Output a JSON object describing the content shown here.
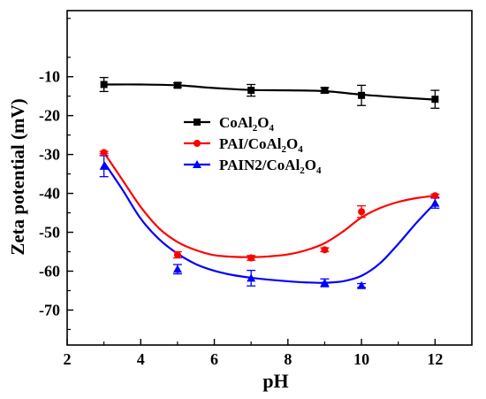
{
  "chart_data": {
    "type": "scatter",
    "title": "",
    "xlabel": "pH",
    "ylabel": "Zeta potential (mV)",
    "xlim": [
      2,
      13
    ],
    "ylim": [
      -79,
      7
    ],
    "x_ticks": [
      2,
      4,
      6,
      8,
      10,
      12
    ],
    "y_ticks": [
      -70,
      -60,
      -50,
      -40,
      -30,
      -20,
      -10
    ],
    "x_tick_labels": [
      "2",
      "4",
      "6",
      "8",
      "10",
      "12"
    ],
    "y_tick_labels": [
      "-70",
      "-60",
      "-50",
      "-40",
      "-30",
      "-20",
      "-10"
    ],
    "grid": false,
    "legend_position": "center-left",
    "series": [
      {
        "name_base": "CoAl",
        "name_sub1": "2",
        "name_mid": "O",
        "name_sub2": "4",
        "prefix": "",
        "color": "#000000",
        "marker": "square",
        "points": [
          {
            "x": 3,
            "y": -12.0,
            "err": 1.8
          },
          {
            "x": 5,
            "y": -12.2,
            "err": 0.6
          },
          {
            "x": 7,
            "y": -13.5,
            "err": 1.5
          },
          {
            "x": 9,
            "y": -13.5,
            "err": 0.7
          },
          {
            "x": 10,
            "y": -14.8,
            "err": 2.6
          },
          {
            "x": 12,
            "y": -15.8,
            "err": 2.3
          }
        ],
        "curve": [
          {
            "x": 3,
            "y": -12.0
          },
          {
            "x": 4,
            "y": -12.0
          },
          {
            "x": 5,
            "y": -12.2
          },
          {
            "x": 6,
            "y": -12.9
          },
          {
            "x": 7,
            "y": -13.4
          },
          {
            "x": 8,
            "y": -13.5
          },
          {
            "x": 9,
            "y": -13.7
          },
          {
            "x": 10,
            "y": -14.6
          },
          {
            "x": 11,
            "y": -15.3
          },
          {
            "x": 12,
            "y": -15.9
          }
        ]
      },
      {
        "name_base": "PAI/CoAl",
        "name_sub1": "2",
        "name_mid": "O",
        "name_sub2": "4",
        "color": "#ff0000",
        "marker": "circle",
        "points": [
          {
            "x": 3,
            "y": -29.5,
            "err": 0.3
          },
          {
            "x": 5,
            "y": -55.8,
            "err": 0.8
          },
          {
            "x": 7,
            "y": -56.6,
            "err": 0.6
          },
          {
            "x": 9,
            "y": -54.5,
            "err": 0.5
          },
          {
            "x": 10,
            "y": -44.7,
            "err": 1.5
          },
          {
            "x": 12,
            "y": -40.6,
            "err": 0.4
          }
        ],
        "curve": [
          {
            "x": 3,
            "y": -29.5
          },
          {
            "x": 3.5,
            "y": -36.5
          },
          {
            "x": 4,
            "y": -43.5
          },
          {
            "x": 4.5,
            "y": -49.0
          },
          {
            "x": 5,
            "y": -52.5
          },
          {
            "x": 5.5,
            "y": -54.6
          },
          {
            "x": 6,
            "y": -55.9
          },
          {
            "x": 6.5,
            "y": -56.3
          },
          {
            "x": 7,
            "y": -56.4
          },
          {
            "x": 7.5,
            "y": -56.2
          },
          {
            "x": 8,
            "y": -55.7
          },
          {
            "x": 8.5,
            "y": -54.6
          },
          {
            "x": 9,
            "y": -52.8
          },
          {
            "x": 9.5,
            "y": -49.8
          },
          {
            "x": 10,
            "y": -46.2
          },
          {
            "x": 10.5,
            "y": -43.8
          },
          {
            "x": 11,
            "y": -42.2
          },
          {
            "x": 11.5,
            "y": -41.2
          },
          {
            "x": 12,
            "y": -40.6
          }
        ]
      },
      {
        "name_base": "PAIN2/CoAl",
        "name_sub1": "2",
        "name_mid": "O",
        "name_sub2": "4",
        "color": "#0000ff",
        "marker": "triangle",
        "points": [
          {
            "x": 3,
            "y": -33.0,
            "err": 2.7
          },
          {
            "x": 5,
            "y": -59.5,
            "err": 1.2
          },
          {
            "x": 7,
            "y": -61.8,
            "err": 2.0
          },
          {
            "x": 9,
            "y": -63.0,
            "err": 1.0
          },
          {
            "x": 10,
            "y": -63.7,
            "err": 0.5
          },
          {
            "x": 12,
            "y": -42.5,
            "err": 1.3
          }
        ],
        "curve": [
          {
            "x": 3,
            "y": -32.0
          },
          {
            "x": 3.5,
            "y": -39.0
          },
          {
            "x": 4,
            "y": -46.5
          },
          {
            "x": 4.5,
            "y": -51.8
          },
          {
            "x": 5,
            "y": -55.5
          },
          {
            "x": 5.5,
            "y": -58.2
          },
          {
            "x": 6,
            "y": -59.9
          },
          {
            "x": 6.5,
            "y": -61.0
          },
          {
            "x": 7,
            "y": -61.7
          },
          {
            "x": 7.5,
            "y": -62.2
          },
          {
            "x": 8,
            "y": -62.6
          },
          {
            "x": 8.5,
            "y": -62.9
          },
          {
            "x": 9,
            "y": -63.0
          },
          {
            "x": 9.5,
            "y": -62.6
          },
          {
            "x": 10,
            "y": -61.2
          },
          {
            "x": 10.5,
            "y": -58.0
          },
          {
            "x": 11,
            "y": -53.0
          },
          {
            "x": 11.5,
            "y": -47.5
          },
          {
            "x": 12,
            "y": -42.5
          }
        ]
      }
    ]
  }
}
